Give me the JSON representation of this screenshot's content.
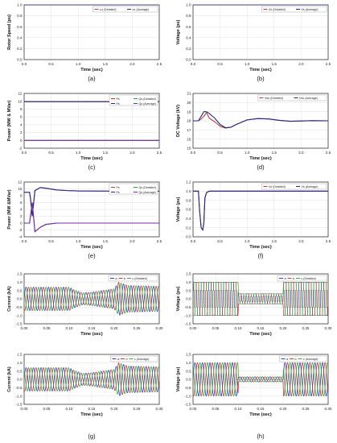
{
  "colors": {
    "red": "#c0392b",
    "navy": "#1f2a8c",
    "green": "#2e9e3e",
    "purple": "#7a2aa8",
    "phaseA": "#2244cc",
    "phaseB": "#d03a2a",
    "phaseC": "#36a83a",
    "grid": "#e3e3e3"
  },
  "chart_data": [
    {
      "id": "a",
      "caption": "(a)",
      "type": "line",
      "xlabel": "Time (sec)",
      "ylabel": "Rotor Speed (pu)",
      "xlim": [
        0,
        2.5
      ],
      "ylim": [
        0,
        1.0
      ],
      "xticks": [
        "0.0",
        "0.5",
        "1.0",
        "1.5",
        "2.0",
        "2.5"
      ],
      "yticks": [
        "0.0",
        "0.2",
        "0.4",
        "0.6",
        "0.8",
        "1.0"
      ],
      "legend": [
        "ωr (Detailed)",
        "ωr (Average)"
      ],
      "series": [
        {
          "name": "ωr (Detailed)",
          "color": "red",
          "x": [
            0,
            2.5
          ],
          "y": [
            1.0,
            1.0
          ]
        },
        {
          "name": "ωr (Average)",
          "color": "navy",
          "x": [
            0,
            2.5
          ],
          "y": [
            1.0,
            1.0
          ]
        }
      ]
    },
    {
      "id": "b",
      "caption": "(b)",
      "type": "line",
      "xlabel": "Time (sec)",
      "ylabel": "Voltage (pu)",
      "xlim": [
        0,
        2.5
      ],
      "ylim": [
        0,
        1.0
      ],
      "xticks": [
        "0.0",
        "0.5",
        "1.0",
        "1.5",
        "2.0",
        "2.5"
      ],
      "yticks": [
        "0.0",
        "0.2",
        "0.4",
        "0.6",
        "0.8",
        "1.0"
      ],
      "legend": [
        "Vs (Detailed)",
        "Vs (Average)"
      ],
      "series": [
        {
          "name": "Vs (Detailed)",
          "color": "red",
          "x": [
            0,
            2.5
          ],
          "y": [
            1.0,
            1.0
          ]
        },
        {
          "name": "Vs (Average)",
          "color": "navy",
          "x": [
            0,
            2.5
          ],
          "y": [
            1.0,
            1.0
          ]
        }
      ]
    },
    {
      "id": "c",
      "caption": "(c)",
      "type": "line",
      "xlabel": "Time (sec)",
      "ylabel": "Power (MW & MVar)",
      "xlim": [
        0,
        2.5
      ],
      "ylim": [
        -2,
        12
      ],
      "xticks": [
        "0.0",
        "0.5",
        "1.0",
        "1.5",
        "2.0",
        "2.5"
      ],
      "yticks": [
        "-2",
        "0",
        "2",
        "4",
        "6",
        "8",
        "10",
        "12"
      ],
      "legend": [
        "Ps",
        "Qs (Detailed)",
        "Ps",
        "Qs (Average)"
      ],
      "series": [
        {
          "name": "Ps (Detailed)",
          "color": "red",
          "x": [
            0,
            2.5
          ],
          "y": [
            9.9,
            9.9
          ]
        },
        {
          "name": "Ps (Average)",
          "color": "navy",
          "x": [
            0,
            2.5
          ],
          "y": [
            9.9,
            9.9
          ]
        },
        {
          "name": "Qs (Detailed)",
          "color": "green",
          "x": [
            0,
            2.5
          ],
          "y": [
            0.0,
            0.0
          ]
        },
        {
          "name": "Qs (Average)",
          "color": "purple",
          "x": [
            0,
            2.5
          ],
          "y": [
            0.0,
            0.0
          ]
        }
      ]
    },
    {
      "id": "d",
      "caption": "(d)",
      "type": "line",
      "xlabel": "Time (sec)",
      "ylabel": "DC Voltage (kV)",
      "xlim": [
        0,
        2.5
      ],
      "ylim": [
        15,
        21
      ],
      "xticks": [
        "0.0",
        "0.5",
        "1.0",
        "1.5",
        "2.0",
        "2.5"
      ],
      "yticks": [
        "15",
        "16",
        "17",
        "18",
        "19",
        "20",
        "21"
      ],
      "legend": [
        "Vdc (Detailed)",
        "Vdc (Average)"
      ],
      "series": [
        {
          "name": "Vdc (Detailed)",
          "color": "red",
          "x": [
            0,
            0.1,
            0.15,
            0.2,
            0.25,
            0.3,
            0.4,
            0.5,
            0.6,
            0.7,
            0.8,
            1.0,
            1.2,
            1.4,
            1.6,
            1.8,
            2.0,
            2.2,
            2.5
          ],
          "y": [
            18,
            18,
            18.2,
            18.5,
            18.9,
            18.3,
            17.9,
            17.4,
            17.2,
            17.3,
            17.6,
            18.1,
            18.25,
            18.2,
            18.05,
            17.95,
            17.98,
            18.02,
            18.0
          ]
        },
        {
          "name": "Vdc (Average)",
          "color": "navy",
          "x": [
            0,
            0.1,
            0.15,
            0.2,
            0.25,
            0.3,
            0.4,
            0.5,
            0.6,
            0.7,
            0.8,
            1.0,
            1.2,
            1.4,
            1.6,
            1.8,
            2.0,
            2.2,
            2.5
          ],
          "y": [
            18,
            18,
            18.5,
            19.0,
            19.0,
            18.8,
            18.3,
            17.6,
            17.25,
            17.3,
            17.6,
            18.1,
            18.25,
            18.2,
            18.05,
            17.95,
            17.98,
            18.02,
            18.0
          ]
        }
      ]
    },
    {
      "id": "e",
      "caption": "(e)",
      "type": "line",
      "xlabel": "Time (sec)",
      "ylabel": "Power (MW &MVar)",
      "xlim": [
        0,
        2.5
      ],
      "ylim": [
        -4,
        12
      ],
      "xticks": [
        "0.0",
        "0.5",
        "1.0",
        "1.5",
        "2.0",
        "2.5"
      ],
      "yticks": [
        "-4",
        "-2",
        "0",
        "2",
        "4",
        "6",
        "8",
        "10",
        "12"
      ],
      "legend": [
        "Ps",
        "Qs (Detailed)",
        "Ps",
        "Qs (Average)"
      ],
      "series": [
        {
          "name": "Ps (Detailed)",
          "color": "red",
          "x": [
            0,
            0.1,
            0.12,
            0.15,
            0.2,
            0.3,
            0.4,
            0.6,
            0.8,
            1.0,
            1.5,
            2.5
          ],
          "y": [
            9,
            9,
            7,
            2,
            9.5,
            10.4,
            10.2,
            9.7,
            9.5,
            9.4,
            9.35,
            9.3
          ]
        },
        {
          "name": "Ps (Average)",
          "color": "navy",
          "x": [
            0,
            0.1,
            0.12,
            0.15,
            0.2,
            0.3,
            0.4,
            0.6,
            0.8,
            1.0,
            1.5,
            2.5
          ],
          "y": [
            9,
            9,
            7,
            2,
            9.5,
            10.4,
            10.2,
            9.7,
            9.5,
            9.4,
            9.35,
            9.3
          ]
        },
        {
          "name": "Qs (Detailed)",
          "color": "green",
          "x": [
            0,
            0.1,
            0.15,
            0.2,
            0.3,
            0.4,
            0.6,
            0.8,
            1.0,
            1.5,
            2.5
          ],
          "y": [
            0,
            0,
            6,
            -2.5,
            -1.2,
            -0.4,
            0,
            0,
            0,
            0,
            0
          ]
        },
        {
          "name": "Qs (Average)",
          "color": "purple",
          "x": [
            0,
            0.1,
            0.15,
            0.2,
            0.3,
            0.4,
            0.6,
            0.8,
            1.0,
            1.5,
            2.5
          ],
          "y": [
            0,
            0,
            6,
            -2.5,
            -1.2,
            -0.4,
            0,
            0,
            0,
            0,
            0
          ]
        }
      ]
    },
    {
      "id": "f",
      "caption": "(f)",
      "type": "line",
      "xlabel": "Time (sec)",
      "ylabel": "Voltage (pu)",
      "xlim": [
        0,
        2.5
      ],
      "ylim": [
        0,
        1.2
      ],
      "xticks": [
        "0.0",
        "0.5",
        "1.0",
        "1.5",
        "2.0",
        "2.5"
      ],
      "yticks": [
        "0.0",
        "0.2",
        "0.4",
        "0.6",
        "0.8",
        "1.0",
        "1.2"
      ],
      "legend": [
        "Vs (Detailed)",
        "Vs (Average)"
      ],
      "series": [
        {
          "name": "Vs (Detailed)",
          "color": "red",
          "x": [
            0,
            0.1,
            0.12,
            0.15,
            0.18,
            0.2,
            0.22,
            0.25,
            0.3,
            0.4,
            2.5
          ],
          "y": [
            1.0,
            1.0,
            0.6,
            0.2,
            0.15,
            0.3,
            0.85,
            0.97,
            1.0,
            1.0,
            1.0
          ]
        },
        {
          "name": "Vs (Average)",
          "color": "navy",
          "x": [
            0,
            0.1,
            0.12,
            0.15,
            0.18,
            0.2,
            0.22,
            0.25,
            0.3,
            0.4,
            2.5
          ],
          "y": [
            1.0,
            1.0,
            0.6,
            0.2,
            0.15,
            0.3,
            0.85,
            0.97,
            1.0,
            1.0,
            1.0
          ]
        }
      ]
    },
    {
      "id": "g1",
      "type": "line",
      "xlabel": "Time (sec)",
      "ylabel": "Current (kA)",
      "xlim": [
        0,
        0.3
      ],
      "ylim": [
        -1.5,
        1.5
      ],
      "xticks": [
        "0.00",
        "0.05",
        "0.10",
        "0.15",
        "0.20",
        "0.25",
        "0.30"
      ],
      "yticks": [
        "-1.5",
        "-1.0",
        "-0.5",
        "0.0",
        "0.5",
        "1.0",
        "1.5"
      ],
      "legend": [
        "a",
        "b",
        "c (Detailed)"
      ],
      "waveform": {
        "freq_hz": 60,
        "phases": [
          "a",
          "b",
          "c"
        ],
        "envelope_t": [
          0,
          0.1,
          0.11,
          0.13,
          0.15,
          0.2,
          0.21,
          0.23,
          0.3
        ],
        "envelope_v": [
          0.7,
          0.7,
          0.55,
          0.35,
          0.4,
          0.6,
          1.0,
          0.8,
          0.75
        ]
      }
    },
    {
      "id": "h1",
      "type": "line",
      "xlabel": "Time (sec)",
      "ylabel": "Voltage (pu)",
      "xlim": [
        0,
        0.3
      ],
      "ylim": [
        -1.5,
        1.5
      ],
      "xticks": [
        "0.00",
        "0.05",
        "0.10",
        "0.15",
        "0.20",
        "0.25",
        "0.30"
      ],
      "yticks": [
        "-1.5",
        "-1.0",
        "-0.5",
        "0.0",
        "0.5",
        "1.0",
        "1.5"
      ],
      "legend": [
        "a",
        "b",
        "c (Detailed)"
      ],
      "waveform": {
        "freq_hz": 60,
        "phases": [
          "a",
          "b",
          "c"
        ],
        "pwm": true,
        "envelope_t": [
          0,
          0.1,
          0.101,
          0.2,
          0.201,
          0.3
        ],
        "envelope_v": [
          1.0,
          1.0,
          0.3,
          0.3,
          1.0,
          1.0
        ]
      }
    },
    {
      "id": "g2",
      "caption": "(g)",
      "type": "line",
      "xlabel": "Time (sec)",
      "ylabel": "Current (kA)",
      "xlim": [
        0,
        0.3
      ],
      "ylim": [
        -1.5,
        1.5
      ],
      "xticks": [
        "0.00",
        "0.05",
        "0.10",
        "0.15",
        "0.20",
        "0.25",
        "0.30"
      ],
      "yticks": [
        "-1.5",
        "-1.0",
        "-0.5",
        "0.0",
        "0.5",
        "1.0",
        "1.5"
      ],
      "legend": [
        "a",
        "b",
        "c (Average)"
      ],
      "waveform": {
        "freq_hz": 60,
        "phases": [
          "a",
          "b",
          "c"
        ],
        "envelope_t": [
          0,
          0.1,
          0.11,
          0.13,
          0.15,
          0.2,
          0.21,
          0.23,
          0.3
        ],
        "envelope_v": [
          0.7,
          0.7,
          0.55,
          0.35,
          0.4,
          0.6,
          1.0,
          0.8,
          0.75
        ]
      }
    },
    {
      "id": "h2",
      "caption": "(h)",
      "type": "line",
      "xlabel": "Time (sec)",
      "ylabel": "Voltage (pu)",
      "xlim": [
        0,
        0.3
      ],
      "ylim": [
        -1.5,
        1.5
      ],
      "xticks": [
        "0.00",
        "0.05",
        "0.10",
        "0.15",
        "0.20",
        "0.25",
        "0.30"
      ],
      "yticks": [
        "-1.5",
        "-1.0",
        "-0.5",
        "0.0",
        "0.5",
        "1.0",
        "1.5"
      ],
      "legend": [
        "a",
        "b",
        "c (Average)"
      ],
      "waveform": {
        "freq_hz": 60,
        "phases": [
          "a",
          "b",
          "c"
        ],
        "envelope_t": [
          0,
          0.1,
          0.101,
          0.2,
          0.201,
          0.3
        ],
        "envelope_v": [
          1.0,
          1.0,
          0.15,
          0.15,
          1.0,
          1.0
        ]
      }
    }
  ]
}
